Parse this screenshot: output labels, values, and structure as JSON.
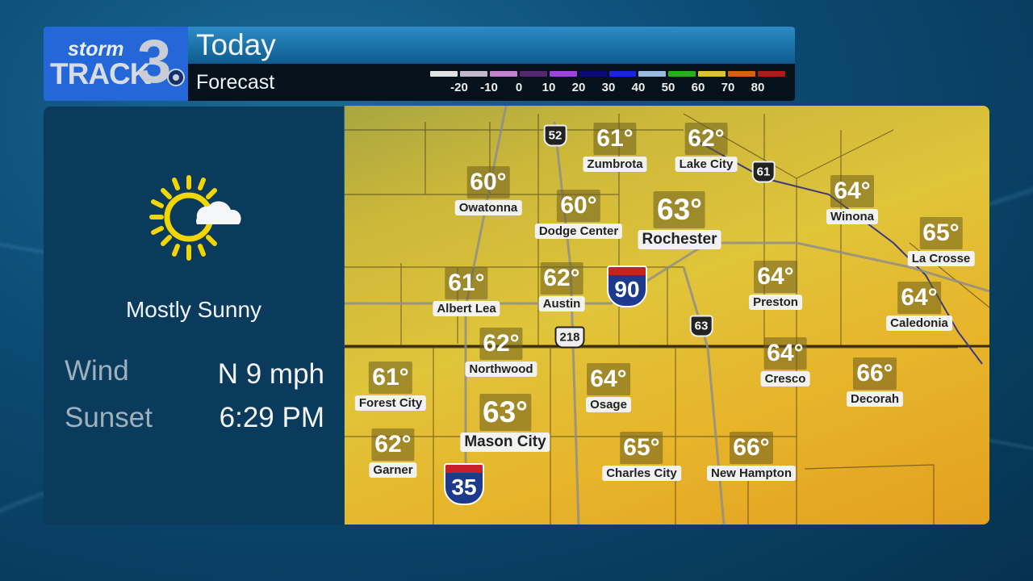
{
  "header": {
    "logo_text": "stormTRACK3",
    "title": "Today",
    "subtitle": "Forecast"
  },
  "temperature_scale": {
    "labels": [
      "-20",
      "-10",
      "0",
      "10",
      "20",
      "30",
      "40",
      "50",
      "60",
      "70",
      "80"
    ],
    "colors": [
      "#e0e2e4",
      "#c2b8cc",
      "#c283cc",
      "#54286e",
      "#9c44d8",
      "#0a0a7a",
      "#1a22e8",
      "#96bde0",
      "#26b01c",
      "#dcc42a",
      "#d8600c",
      "#b01a18"
    ]
  },
  "conditions": {
    "icon": "partly-sunny-icon",
    "summary": "Mostly Sunny",
    "wind_label": "Wind",
    "wind_value": "N 9 mph",
    "sunset_label": "Sunset",
    "sunset_value": "6:29 PM"
  },
  "cities": [
    {
      "name": "Zumbrota",
      "temp": "61°"
    },
    {
      "name": "Lake City",
      "temp": "62°"
    },
    {
      "name": "Owatonna",
      "temp": "60°"
    },
    {
      "name": "Dodge Center",
      "temp": "60°"
    },
    {
      "name": "Rochester",
      "temp": "63°"
    },
    {
      "name": "Winona",
      "temp": "64°"
    },
    {
      "name": "La Crosse",
      "temp": "65°"
    },
    {
      "name": "Albert Lea",
      "temp": "61°"
    },
    {
      "name": "Austin",
      "temp": "62°"
    },
    {
      "name": "Preston",
      "temp": "64°"
    },
    {
      "name": "Caledonia",
      "temp": "64°"
    },
    {
      "name": "Northwood",
      "temp": "62°"
    },
    {
      "name": "Cresco",
      "temp": "64°"
    },
    {
      "name": "Osage",
      "temp": "64°"
    },
    {
      "name": "Decorah",
      "temp": "66°"
    },
    {
      "name": "Forest City",
      "temp": "61°"
    },
    {
      "name": "Mason City",
      "temp": "63°"
    },
    {
      "name": "Garner",
      "temp": "62°"
    },
    {
      "name": "Charles City",
      "temp": "65°"
    },
    {
      "name": "New Hampton",
      "temp": "66°"
    }
  ],
  "highways": {
    "us52": "52",
    "us61": "61",
    "i90": "90",
    "us63": "63",
    "us218": "218",
    "i35": "35"
  }
}
